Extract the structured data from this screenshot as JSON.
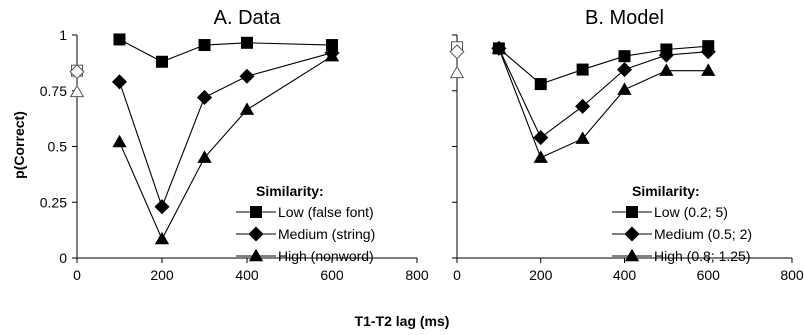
{
  "figure": {
    "ylabel": "p(Correct)",
    "xlabel": "T1-T2 lag (ms)"
  },
  "chart_data": [
    {
      "type": "line",
      "title": "A. Data",
      "xlim": [
        0,
        800
      ],
      "ylim": [
        0,
        1
      ],
      "xticks": [
        "0",
        "200",
        "400",
        "600",
        "800"
      ],
      "yticks": [
        "0",
        "0.25",
        "0.5",
        "0.75",
        "1"
      ],
      "legend_title": "Similarity:",
      "legend_placement": "bottom-right",
      "series": [
        {
          "name": "Low (false font)",
          "marker": "square",
          "x": [
            100,
            200,
            300,
            400,
            600
          ],
          "y": [
            0.98,
            0.88,
            0.955,
            0.965,
            0.955
          ]
        },
        {
          "name": "Medium (string)",
          "marker": "diamond",
          "x": [
            100,
            200,
            300,
            400,
            600
          ],
          "y": [
            0.79,
            0.23,
            0.72,
            0.815,
            0.92
          ]
        },
        {
          "name": "High (nonword)",
          "marker": "triangle",
          "x": [
            100,
            200,
            300,
            400,
            600
          ],
          "y": [
            0.52,
            0.085,
            0.45,
            0.665,
            0.905
          ]
        }
      ],
      "baseline_markers": [
        {
          "marker": "square",
          "x": 0,
          "y": 0.84
        },
        {
          "marker": "diamond",
          "x": 0,
          "y": 0.835
        },
        {
          "marker": "triangle",
          "x": 0,
          "y": 0.745
        }
      ]
    },
    {
      "type": "line",
      "title": "B. Model",
      "xlim": [
        0,
        800
      ],
      "ylim": [
        0,
        1
      ],
      "xticks": [
        "0",
        "200",
        "400",
        "600",
        "800"
      ],
      "yticks": [],
      "legend_title": "Similarity:",
      "legend_placement": "bottom-right",
      "series": [
        {
          "name": "Low (0.2; 5)",
          "marker": "square",
          "x": [
            100,
            200,
            300,
            400,
            500,
            600
          ],
          "y": [
            0.94,
            0.78,
            0.845,
            0.905,
            0.935,
            0.95
          ]
        },
        {
          "name": "Medium (0.5; 2)",
          "marker": "diamond",
          "x": [
            100,
            200,
            300,
            400,
            500,
            600
          ],
          "y": [
            0.94,
            0.54,
            0.68,
            0.845,
            0.91,
            0.925
          ]
        },
        {
          "name": "High (0.8; 1.25)",
          "marker": "triangle",
          "x": [
            100,
            200,
            300,
            400,
            500,
            600
          ],
          "y": [
            0.94,
            0.45,
            0.535,
            0.755,
            0.84,
            0.84
          ]
        }
      ],
      "baseline_markers": [
        {
          "marker": "square",
          "x": 0,
          "y": 0.945
        },
        {
          "marker": "diamond",
          "x": 0,
          "y": 0.925
        },
        {
          "marker": "triangle",
          "x": 0,
          "y": 0.83
        }
      ]
    }
  ]
}
